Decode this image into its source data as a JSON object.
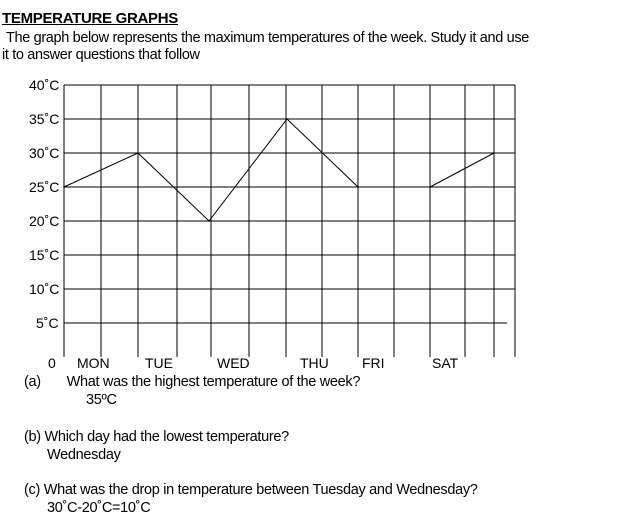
{
  "heading": "TEMPERATURE GRAPHS",
  "intro_line1": "The graph below represents the maximum temperatures of the week. Study it and use",
  "intro_line2": "it to answer questions that follow",
  "chart_data": {
    "type": "line",
    "title": "",
    "xlabel": "",
    "ylabel": "",
    "categories": [
      "MON",
      "TUE",
      "WED",
      "THU",
      "FRI",
      "SAT"
    ],
    "x_origin_label": "0",
    "y_ticks": [
      5,
      10,
      15,
      20,
      25,
      30,
      35,
      40
    ],
    "y_tick_labels": [
      "5˚C",
      "10˚C",
      "15˚C",
      "20˚C",
      "25˚C",
      "30˚C",
      "35˚C",
      "40˚C"
    ],
    "ylim": [
      0,
      40
    ],
    "grid": true,
    "segments": [
      {
        "points": [
          [
            "MON",
            25
          ],
          [
            "TUE",
            30
          ],
          [
            "WED",
            20
          ],
          [
            "THU",
            35
          ],
          [
            "FRI",
            25
          ]
        ]
      },
      {
        "points": [
          [
            "SAT",
            25
          ],
          [
            "SAT+",
            30
          ]
        ]
      }
    ]
  },
  "questions": [
    {
      "label": "(a)",
      "question": "What was the highest temperature of the week?",
      "answer": "35ºC"
    },
    {
      "label": "",
      "question": "(b) Which day had the lowest temperature?",
      "answer": "Wednesday"
    },
    {
      "label": "",
      "question": "(c) What was the drop in temperature between Tuesday and Wednesday?",
      "answer": "30˚C-20˚C=10˚C"
    }
  ]
}
